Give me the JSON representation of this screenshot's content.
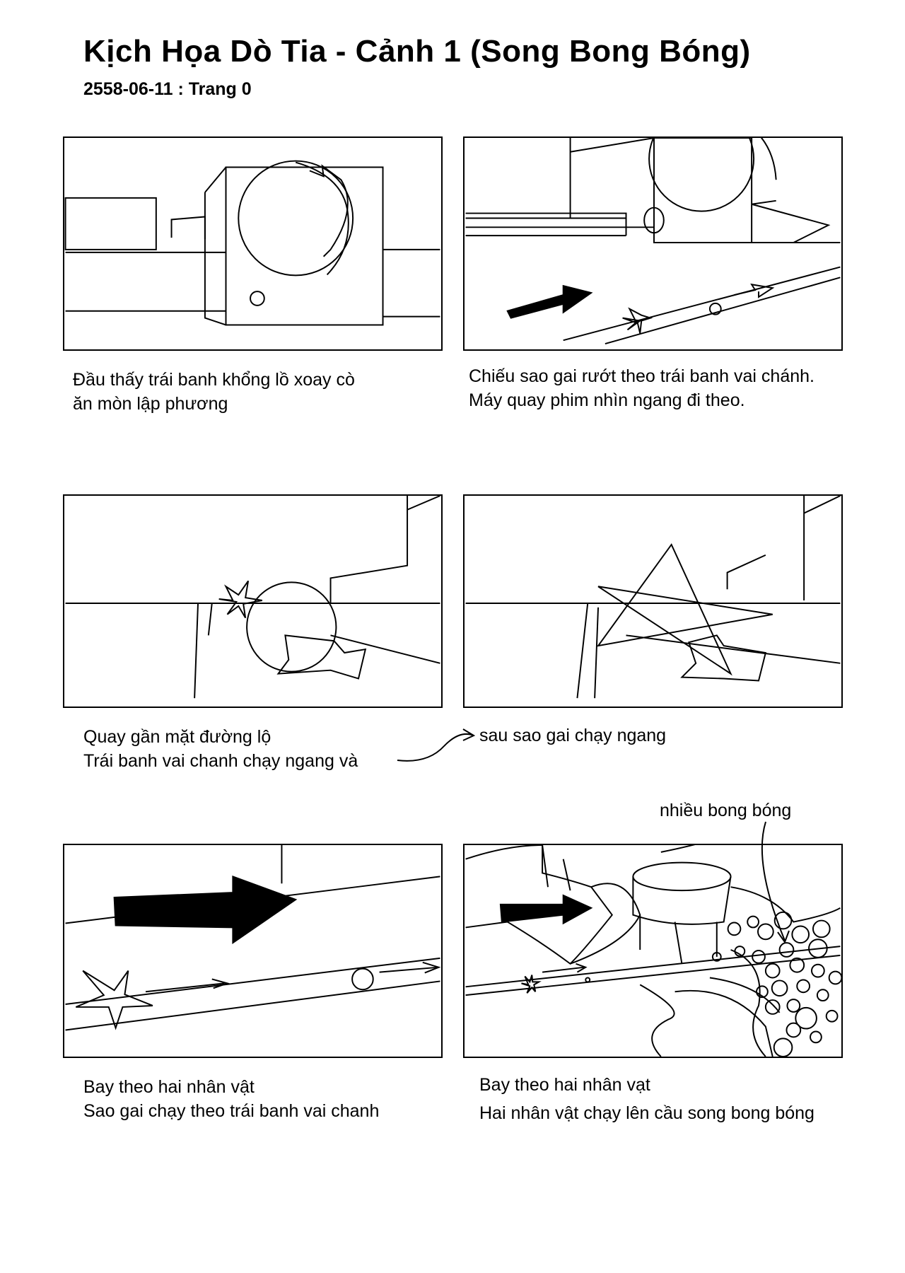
{
  "page": {
    "title": "Kịch Họa Dò Tia - Cảnh 1 (Song Bong Bóng)",
    "subtitle": "2558-06-11 : Trang 0"
  },
  "panels": [
    {
      "caption": [
        "Đầu thấy trái banh khổng lồ xoay cò",
        "ăn mòn lập phương"
      ]
    },
    {
      "caption": [
        "Chiếu sao gai rướt theo trái banh vai chánh.",
        "Máy quay phim nhìn ngang đi theo."
      ]
    },
    {
      "caption": [
        "Quay gần mặt đường lộ",
        "Trái banh vai chanh chạy ngang và"
      ]
    },
    {
      "caption": [
        "sau sao gai chạy ngang"
      ]
    },
    {
      "caption": [
        "Bay theo hai nhân vật",
        "Sao gai chạy theo trái banh vai chanh"
      ]
    },
    {
      "caption": [
        "Bay theo hai nhân vạt",
        "Hai nhân vật chạy lên cầu song bong bóng"
      ],
      "note": "nhiều bong bóng"
    }
  ]
}
